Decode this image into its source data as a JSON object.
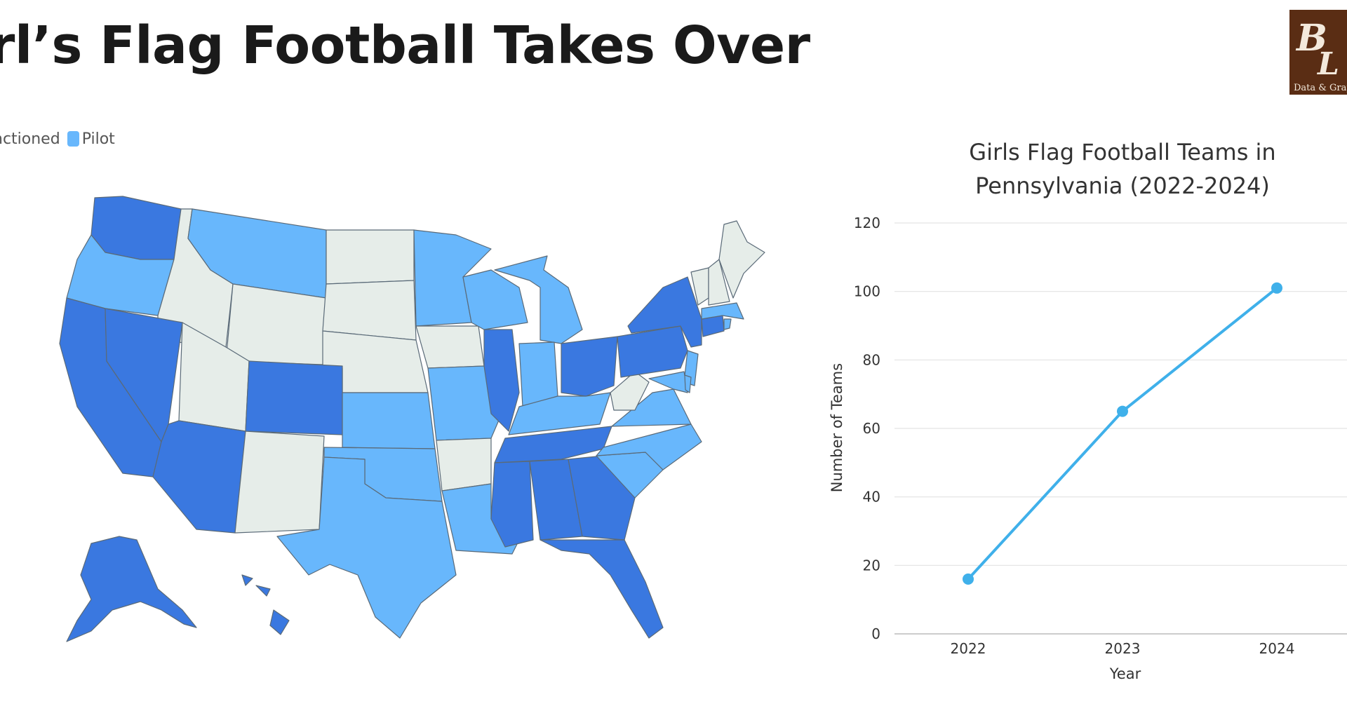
{
  "header": {
    "title": "irl’s Flag Football Takes Over"
  },
  "logo": {
    "text": "Data & Grap",
    "icon": "bl-monogram-logo",
    "color": "#5a2d14"
  },
  "map_legend": {
    "partial_label": "nctioned",
    "pilot_label": "Pilot"
  },
  "map_colors": {
    "sanctioned": "#3a78e0",
    "pilot": "#68b7fc",
    "none": "#e6ede9"
  },
  "chart_data": {
    "type": "line",
    "title_line1": "Girls Flag Football Teams in",
    "title_line2": "Pennsylvania (2022-2024)",
    "xlabel": "Year",
    "ylabel": "Number of Teams",
    "x": [
      "2022",
      "2023",
      "2024"
    ],
    "series": [
      {
        "values": [
          16,
          65,
          101
        ],
        "color": "#3fb0ea"
      }
    ],
    "ylim": [
      0,
      120
    ],
    "yticks": [
      0,
      20,
      40,
      60,
      80,
      100,
      120
    ],
    "grid": true
  }
}
